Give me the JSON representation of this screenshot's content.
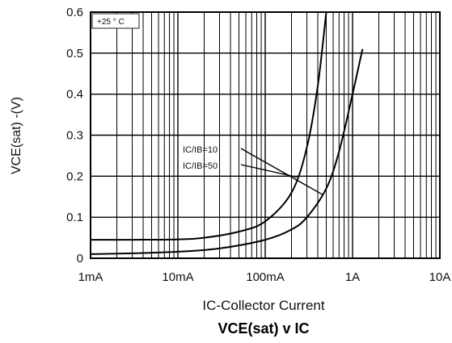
{
  "chart_data": {
    "type": "line",
    "title": "VCE(sat) v IC",
    "xlabel": "IC-Collector Current",
    "ylabel": "VCE(sat) -(V)",
    "x_scale": "log",
    "xlim": [
      "1mA",
      "10A"
    ],
    "ylim": [
      0,
      0.6
    ],
    "x_ticks": [
      "1mA",
      "10mA",
      "100mA",
      "1A",
      "10A"
    ],
    "y_ticks": [
      "0",
      "0.1",
      "0.2",
      "0.3",
      "0.4",
      "0.5",
      "0.6"
    ],
    "grid": true,
    "condition_label": "+25 ° C",
    "series": [
      {
        "name": "IC/IB=50",
        "x_amps": [
          0.001,
          0.003,
          0.01,
          0.02,
          0.05,
          0.1,
          0.2,
          0.3,
          0.4,
          0.5
        ],
        "y": [
          0.045,
          0.045,
          0.046,
          0.05,
          0.065,
          0.09,
          0.16,
          0.27,
          0.42,
          0.6
        ]
      },
      {
        "name": "IC/IB=10",
        "x_amps": [
          0.001,
          0.003,
          0.01,
          0.03,
          0.1,
          0.2,
          0.3,
          0.5,
          0.7,
          1.0,
          1.3
        ],
        "y": [
          0.01,
          0.012,
          0.016,
          0.024,
          0.045,
          0.07,
          0.1,
          0.17,
          0.26,
          0.4,
          0.51
        ]
      }
    ],
    "annotations": [
      {
        "text": "IC/IB=10",
        "points_to": "IC/IB=10"
      },
      {
        "text": "IC/IB=50",
        "points_to": "IC/IB=50"
      }
    ]
  }
}
